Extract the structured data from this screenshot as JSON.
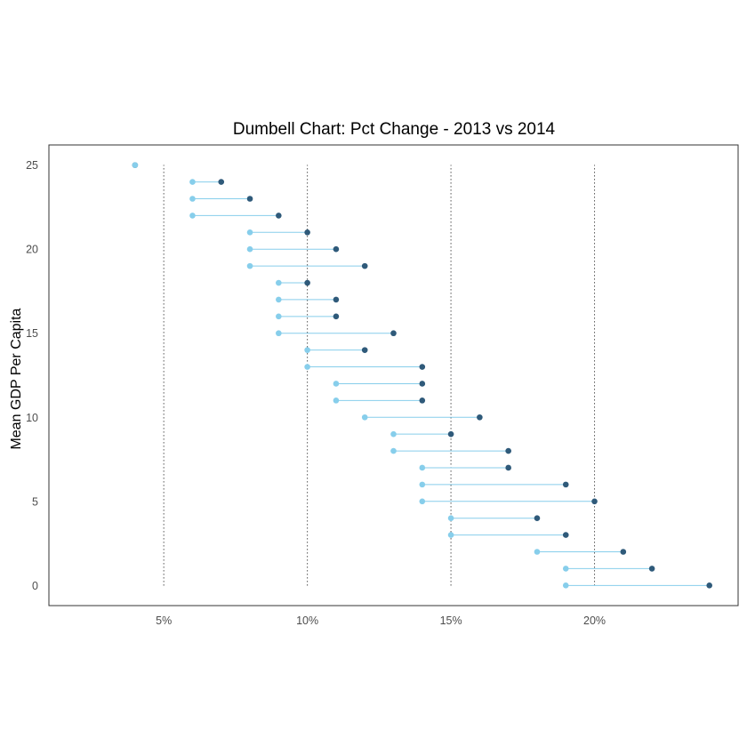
{
  "chart_data": {
    "type": "scatter",
    "subtype": "dumbbell",
    "title": "Dumbell Chart: Pct Change - 2013 vs 2014",
    "xlabel": "",
    "ylabel": "Mean GDP Per Capita",
    "xlim": [
      1,
      25
    ],
    "ylim": [
      -1.2,
      26.2
    ],
    "x_ticks": [
      {
        "value": 5,
        "label": "5%"
      },
      {
        "value": 10,
        "label": "10%"
      },
      {
        "value": 15,
        "label": "15%"
      },
      {
        "value": 20,
        "label": "20%"
      }
    ],
    "y_ticks": [
      {
        "value": 0,
        "label": "0"
      },
      {
        "value": 5,
        "label": "5"
      },
      {
        "value": 10,
        "label": "10"
      },
      {
        "value": 15,
        "label": "15"
      },
      {
        "value": 20,
        "label": "20"
      },
      {
        "value": 25,
        "label": "25"
      }
    ],
    "vertical_dotted_lines_at_x": [
      5,
      10,
      15,
      20
    ],
    "vertical_dotted_line_y_range": [
      0,
      25
    ],
    "grid": false,
    "legend": "none",
    "colors": {
      "start_point": "#87ceeb",
      "end_point": "#2f5a7a",
      "segment": "#87ceeb",
      "reference_line": "#000000",
      "panel_border": "#333333"
    },
    "points": [
      {
        "y": 0,
        "x_2013": 19,
        "x_2014": 24
      },
      {
        "y": 1,
        "x_2013": 19,
        "x_2014": 22
      },
      {
        "y": 2,
        "x_2013": 18,
        "x_2014": 21
      },
      {
        "y": 3,
        "x_2013": 15,
        "x_2014": 19
      },
      {
        "y": 4,
        "x_2013": 15,
        "x_2014": 18
      },
      {
        "y": 5,
        "x_2013": 14,
        "x_2014": 20
      },
      {
        "y": 6,
        "x_2013": 14,
        "x_2014": 19
      },
      {
        "y": 7,
        "x_2013": 14,
        "x_2014": 17
      },
      {
        "y": 8,
        "x_2013": 13,
        "x_2014": 17
      },
      {
        "y": 9,
        "x_2013": 13,
        "x_2014": 15
      },
      {
        "y": 10,
        "x_2013": 12,
        "x_2014": 16
      },
      {
        "y": 11,
        "x_2013": 11,
        "x_2014": 14
      },
      {
        "y": 12,
        "x_2013": 11,
        "x_2014": 14
      },
      {
        "y": 13,
        "x_2013": 10,
        "x_2014": 14
      },
      {
        "y": 14,
        "x_2013": 10,
        "x_2014": 12
      },
      {
        "y": 15,
        "x_2013": 9,
        "x_2014": 13
      },
      {
        "y": 16,
        "x_2013": 9,
        "x_2014": 11
      },
      {
        "y": 17,
        "x_2013": 9,
        "x_2014": 11
      },
      {
        "y": 18,
        "x_2013": 9,
        "x_2014": 10
      },
      {
        "y": 19,
        "x_2013": 8,
        "x_2014": 12
      },
      {
        "y": 20,
        "x_2013": 8,
        "x_2014": 11
      },
      {
        "y": 21,
        "x_2013": 8,
        "x_2014": 10
      },
      {
        "y": 22,
        "x_2013": 6,
        "x_2014": 9
      },
      {
        "y": 23,
        "x_2013": 6,
        "x_2014": 8
      },
      {
        "y": 24,
        "x_2013": 6,
        "x_2014": 7
      },
      {
        "y": 25,
        "x_2013": 4,
        "x_2014": 4
      }
    ]
  }
}
